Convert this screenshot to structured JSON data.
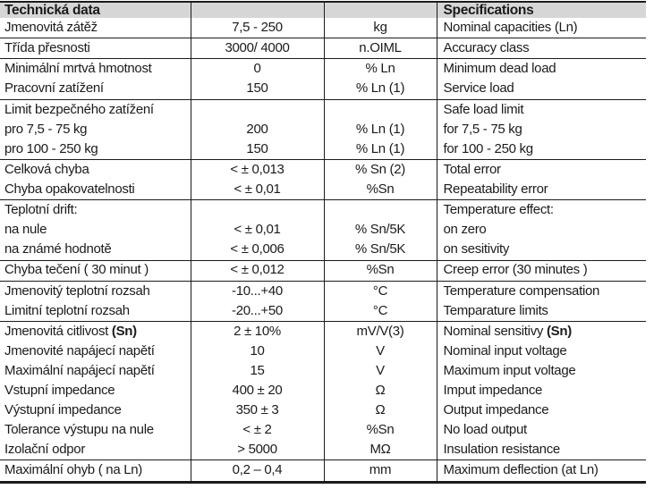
{
  "colors": {
    "header_background": "#d6d6d6",
    "line_color": "#1b1b1b",
    "text_color": "#1b1b1b",
    "page_background": "#ffffff"
  },
  "table": {
    "header": {
      "czech_title": "Technická data",
      "english_title": "Specifications"
    },
    "rows": [
      {
        "cs": "Jmenovitá zátěž",
        "value": "7,5 - 250",
        "unit": "kg",
        "en": "Nominal capacities (Ln)",
        "rule_below": true
      },
      {
        "cs": "Třída přesnosti",
        "value": "3000/ 4000",
        "unit": "n.OIML",
        "en": "Accuracy class",
        "rule_below": true
      },
      {
        "cs": "Minimální mrtvá hmotnost",
        "value": "0",
        "unit": "% Ln",
        "en": "Minimum dead load",
        "rule_below": false
      },
      {
        "cs": "Pracovní zatížení",
        "value": "150",
        "unit": "% Ln (1)",
        "en": "Service load",
        "rule_below": true
      },
      {
        "cs": "Limit bezpečného zatížení",
        "value": "",
        "unit": "",
        "en": "Safe load limit",
        "rule_below": false
      },
      {
        "cs": "pro 7,5 - 75 kg",
        "value": "200",
        "unit": "% Ln (1)",
        "en": "for 7,5 - 75 kg",
        "rule_below": false
      },
      {
        "cs": "pro 100 - 250 kg",
        "value": "150",
        "unit": "% Ln (1)",
        "en": "for 100 - 250 kg",
        "rule_below": true
      },
      {
        "cs": "Celková chyba",
        "value": "< ± 0,013",
        "unit": "% Sn (2)",
        "en": "Total error",
        "rule_below": false
      },
      {
        "cs": "Chyba opakovatelnosti",
        "value": "< ± 0,01",
        "unit": "%Sn",
        "en": "Repeatability error",
        "rule_below": true
      },
      {
        "cs": "Teplotní drift:",
        "value": "",
        "unit": "",
        "en": "Temperature effect:",
        "rule_below": false
      },
      {
        "cs": "na nule",
        "value": "< ± 0,01",
        "unit": "% Sn/5K",
        "en": "on zero",
        "rule_below": false
      },
      {
        "cs": "na známé hodnotě",
        "value": "< ± 0,006",
        "unit": "% Sn/5K",
        "en": "on sesitivity",
        "rule_below": true
      },
      {
        "cs": "Chyba tečení ( 30 minut )",
        "value": "< ± 0,012",
        "unit": "%Sn",
        "en": "Creep error (30 minutes )",
        "rule_below": true
      },
      {
        "cs": "Jmenovitý teplotní rozsah",
        "value": "-10...+40",
        "unit": "°C",
        "en": "Temperature compensation",
        "rule_below": false
      },
      {
        "cs": "Limitní teplotní rozsah",
        "value": "-20...+50",
        "unit": "°C",
        "en": "Temparature limits",
        "rule_below": true
      },
      {
        "cs": "Jmenovitá citlivost ",
        "cs_bold": "(Sn)",
        "value": "2 ± 10%",
        "unit": "mV/V(3)",
        "en": "Nominal sensitivy ",
        "en_bold": "(Sn)",
        "rule_below": false
      },
      {
        "cs": "Jmenovité napájecí napětí",
        "value": "10",
        "unit": "V",
        "en": "Nominal input voltage",
        "rule_below": false
      },
      {
        "cs": "Maximální napájecí napětí",
        "value": "15",
        "unit": "V",
        "en": "Maximum input voltage",
        "rule_below": false
      },
      {
        "cs": "Vstupní impedance",
        "value": "400 ± 20",
        "unit": "Ω",
        "en": "Imput impedance",
        "rule_below": false
      },
      {
        "cs": "Výstupní impedance",
        "value": "350 ± 3",
        "unit": "Ω",
        "en": "Output impedance",
        "rule_below": false
      },
      {
        "cs": "Tolerance výstupu na nule",
        "value": "< ± 2",
        "unit": "%Sn",
        "en": "No load output",
        "rule_below": false
      },
      {
        "cs": "Izolační odpor",
        "value": "> 5000",
        "unit": "MΩ",
        "en": "Insulation resistance",
        "rule_below": true
      },
      {
        "cs": "Maximální ohyb ( na Ln)",
        "value": "0,2 – 0,4",
        "unit": "mm",
        "en": "Maximum deflection (at Ln)",
        "rule_below": false
      }
    ]
  }
}
